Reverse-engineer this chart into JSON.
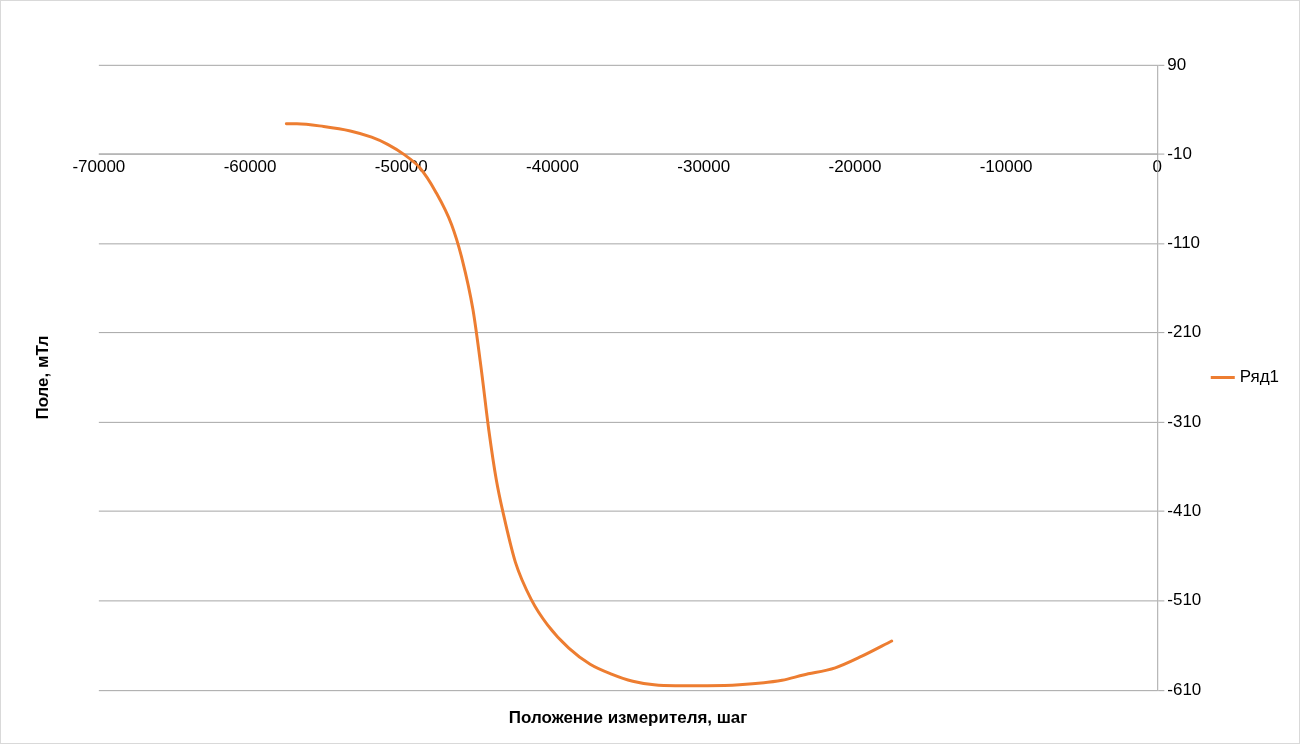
{
  "chart_data": {
    "type": "line",
    "xlabel": "Положение измерителя, шаг",
    "ylabel": "Поле, мТл",
    "x": [
      -57600,
      -56900,
      -55130,
      -53370,
      -51960,
      -50900,
      -49850,
      -48790,
      -47730,
      -46670,
      -45970,
      -45260,
      -44700,
      -44210,
      -43710,
      -43150,
      -42450,
      -41390,
      -40330,
      -38920,
      -37510,
      -36100,
      -34690,
      -33280,
      -31870,
      -29760,
      -27640,
      -24820,
      -23410,
      -21300,
      -19540,
      -17570
    ],
    "series": [
      {
        "name": "Ряд1",
        "color": "#ed7d31",
        "values": [
          24,
          24,
          21,
          16,
          9,
          1,
          -10,
          -25,
          -52,
          -89,
          -128,
          -184,
          -252,
          -319,
          -375,
          -420,
          -467,
          -509,
          -537,
          -563,
          -581,
          -592,
          -600,
          -604,
          -605,
          -605,
          -604,
          -599,
          -593,
          -585,
          -572,
          -555
        ]
      }
    ],
    "xlim": [
      -70000,
      0
    ],
    "xticks": [
      -70000,
      -60000,
      -50000,
      -40000,
      -30000,
      -20000,
      -10000,
      0
    ],
    "ylim": [
      -610,
      90
    ],
    "yticks": [
      -610,
      -510,
      -410,
      -310,
      -210,
      -110,
      -10,
      90
    ],
    "grid": "y",
    "legend": "right",
    "marker": "none",
    "line_style": "solid"
  }
}
